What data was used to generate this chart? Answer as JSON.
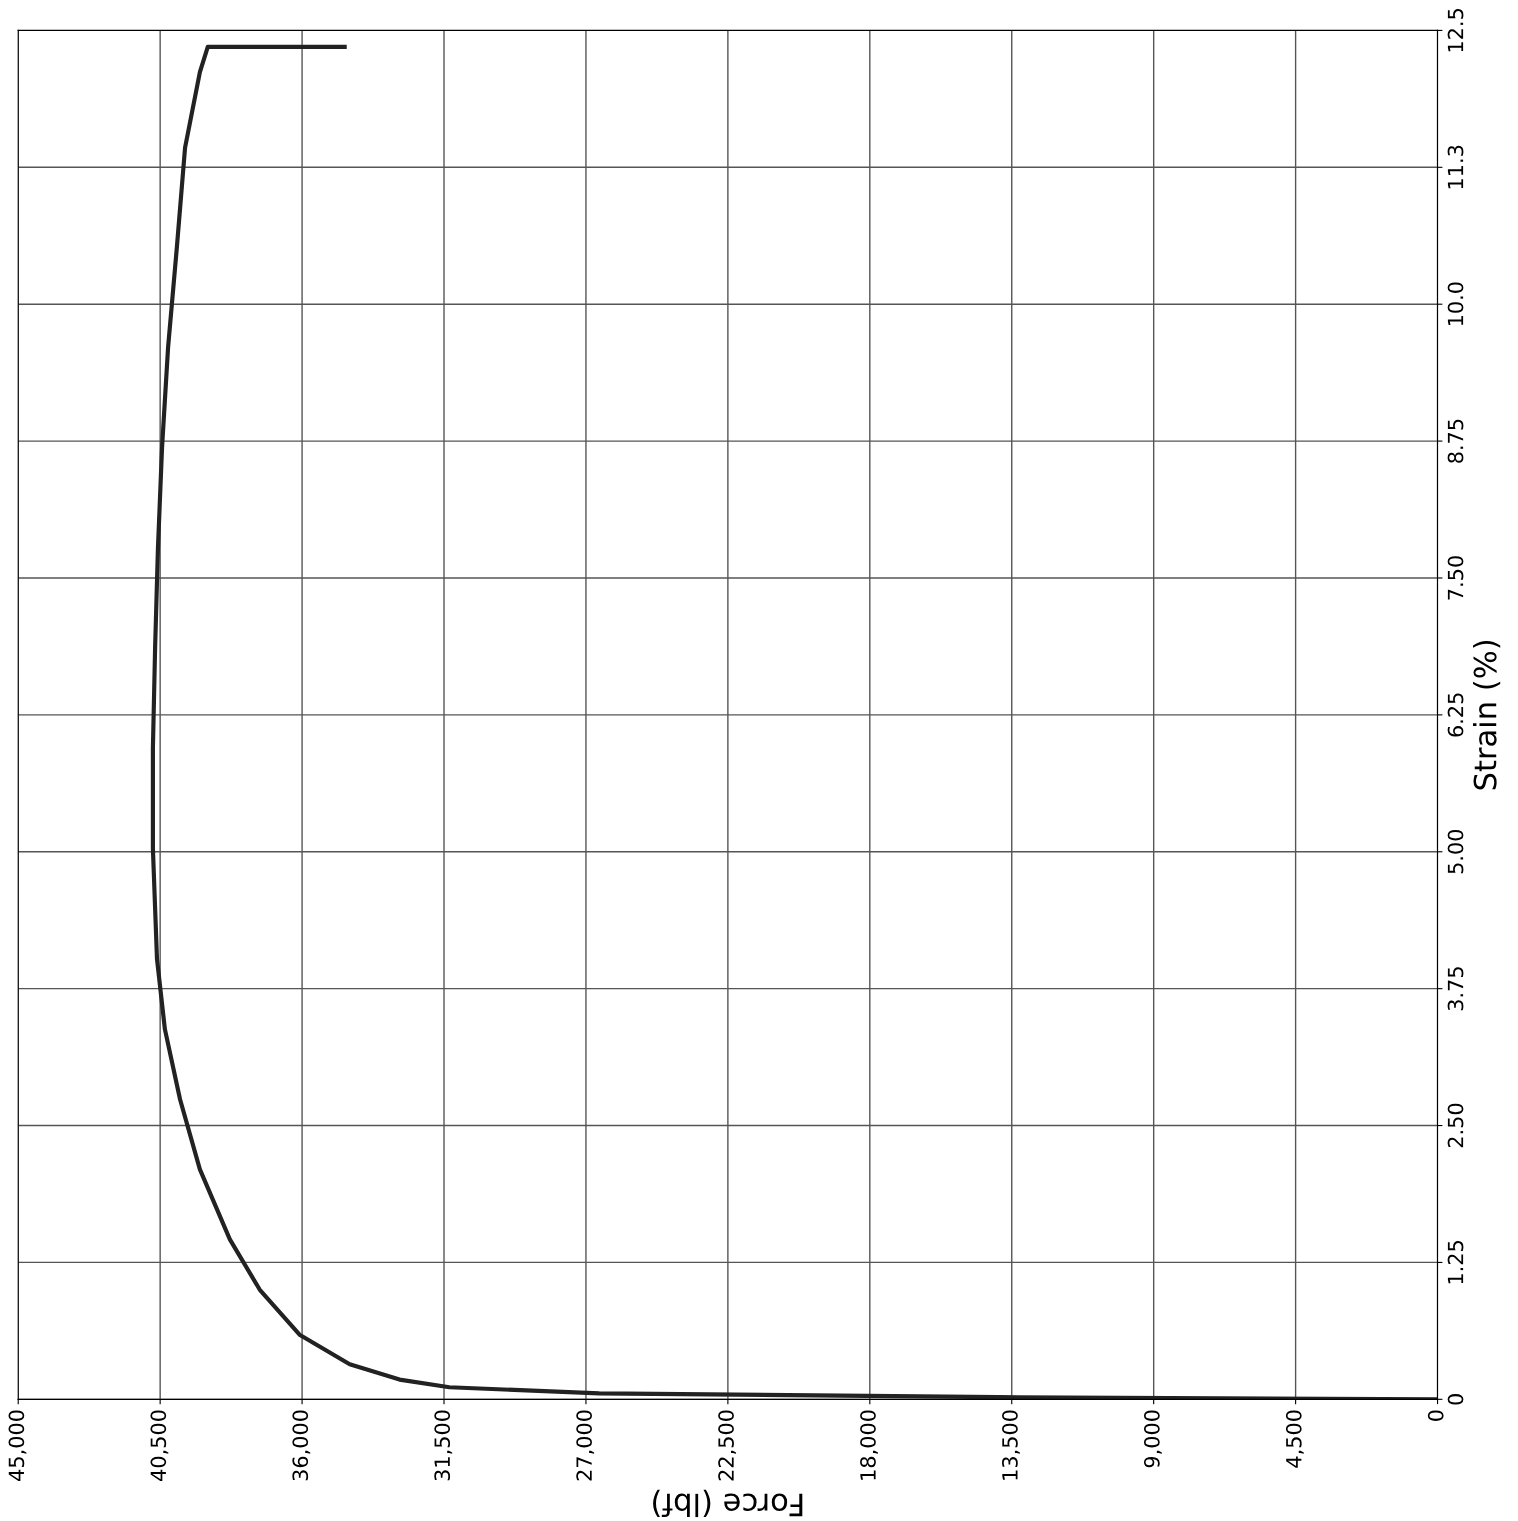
{
  "chart_data": {
    "type": "line",
    "xlabel": "Force (lbf)",
    "ylabel": "Strain (%)",
    "xlim": [
      45000,
      0
    ],
    "ylim": [
      0,
      12.5
    ],
    "xticks": [
      {
        "value": 45000,
        "label": "45,000"
      },
      {
        "value": 40500,
        "label": "40,500"
      },
      {
        "value": 36000,
        "label": "36,000"
      },
      {
        "value": 31500,
        "label": "31,500"
      },
      {
        "value": 27000,
        "label": "27,000"
      },
      {
        "value": 22500,
        "label": "22,500"
      },
      {
        "value": 18000,
        "label": "18,000"
      },
      {
        "value": 13500,
        "label": "13,500"
      },
      {
        "value": 9000,
        "label": "9,000"
      },
      {
        "value": 4500,
        "label": "4,500"
      },
      0
    ],
    "yticks": [
      0,
      1.25,
      {
        "value": 2.5,
        "label": "2.50"
      },
      3.75,
      {
        "value": 5,
        "label": "5.00"
      },
      6.25,
      {
        "value": 7.5,
        "label": "7.50"
      },
      8.75,
      {
        "value": 10,
        "label": "10.0"
      },
      {
        "value": 11.25,
        "label": "11.3"
      },
      12.5
    ],
    "grid": true,
    "marker": "none",
    "line_style": "solid",
    "series": [
      {
        "color": "#222222",
        "x": [
          0,
          13920,
          26580,
          31330,
          32910,
          34490,
          36080,
          37340,
          38290,
          39240,
          39870,
          40350,
          40600,
          40730,
          40730,
          40660,
          40570,
          40440,
          40250,
          39970,
          39710,
          39240,
          38990,
          34650
        ],
        "values": [
          0,
          0.02,
          0.055,
          0.11,
          0.18,
          0.32,
          0.59,
          1.0,
          1.46,
          2.1,
          2.74,
          3.38,
          4.02,
          5.03,
          5.94,
          6.86,
          7.77,
          8.69,
          9.6,
          10.52,
          11.43,
          12.12,
          12.35,
          12.35
        ]
      }
    ]
  }
}
